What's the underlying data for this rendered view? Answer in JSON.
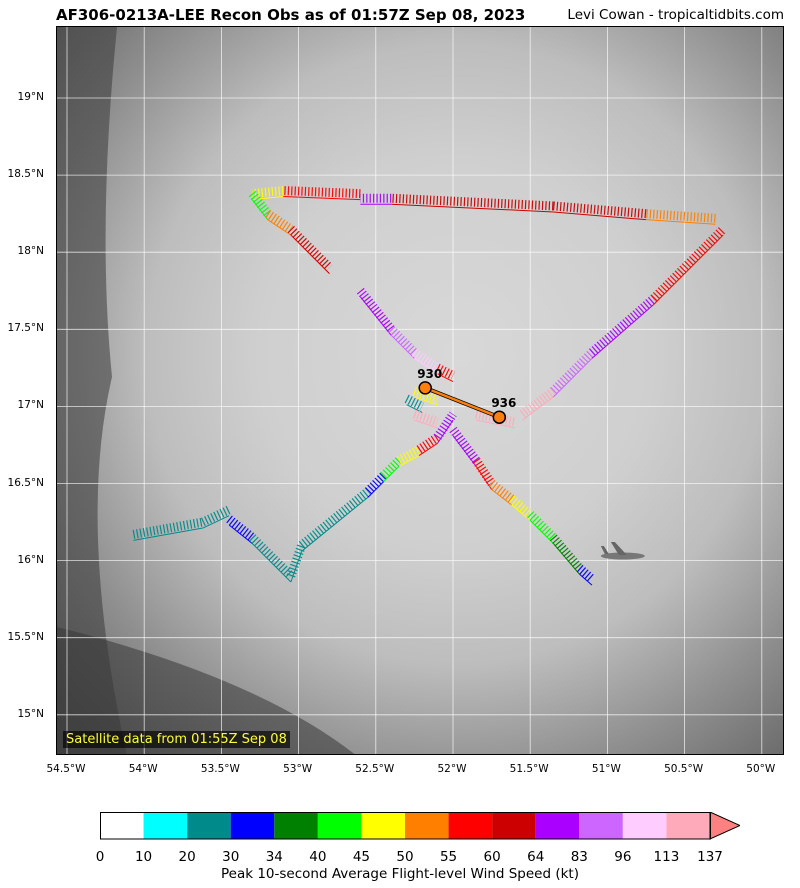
{
  "header": {
    "title": "AF306-0213A-LEE Recon Obs as of 01:57Z Sep 08, 2023",
    "credit": "Levi Cowan - tropicaltidbits.com"
  },
  "map": {
    "satellite_label": "Satellite data from 01:55Z Sep 08",
    "lat_ticks": [
      "19°N",
      "18.5°N",
      "18°N",
      "17.5°N",
      "17°N",
      "16.5°N",
      "16°N",
      "15.5°N",
      "15°N"
    ],
    "lon_ticks": [
      "54.5°W",
      "54°W",
      "53.5°W",
      "53°W",
      "52.5°W",
      "52°W",
      "51.5°W",
      "51°W",
      "50.5°W",
      "50°W"
    ],
    "center_fixes": [
      {
        "label": "930",
        "lat": 17.12,
        "lon": -52.18
      },
      {
        "label": "936",
        "lat": 16.93,
        "lon": -51.7
      }
    ],
    "track_color": "#ff7f0e",
    "aircraft_icon": "airplane-icon"
  },
  "colorbar": {
    "label": "Peak 10-second Average Flight-level Wind Speed (kt)",
    "ticks": [
      "0",
      "10",
      "20",
      "30",
      "34",
      "40",
      "45",
      "50",
      "55",
      "60",
      "64",
      "83",
      "96",
      "113",
      "137"
    ],
    "colors": [
      "#ffffff",
      "#00ffff",
      "#008b8b",
      "#0000ff",
      "#008000",
      "#00ff00",
      "#ffff00",
      "#ff8000",
      "#ff0000",
      "#cc0000",
      "#aa00ff",
      "#cc66ff",
      "#ffccff",
      "#ffaabb"
    ],
    "extend_color": "#ff8080"
  }
}
